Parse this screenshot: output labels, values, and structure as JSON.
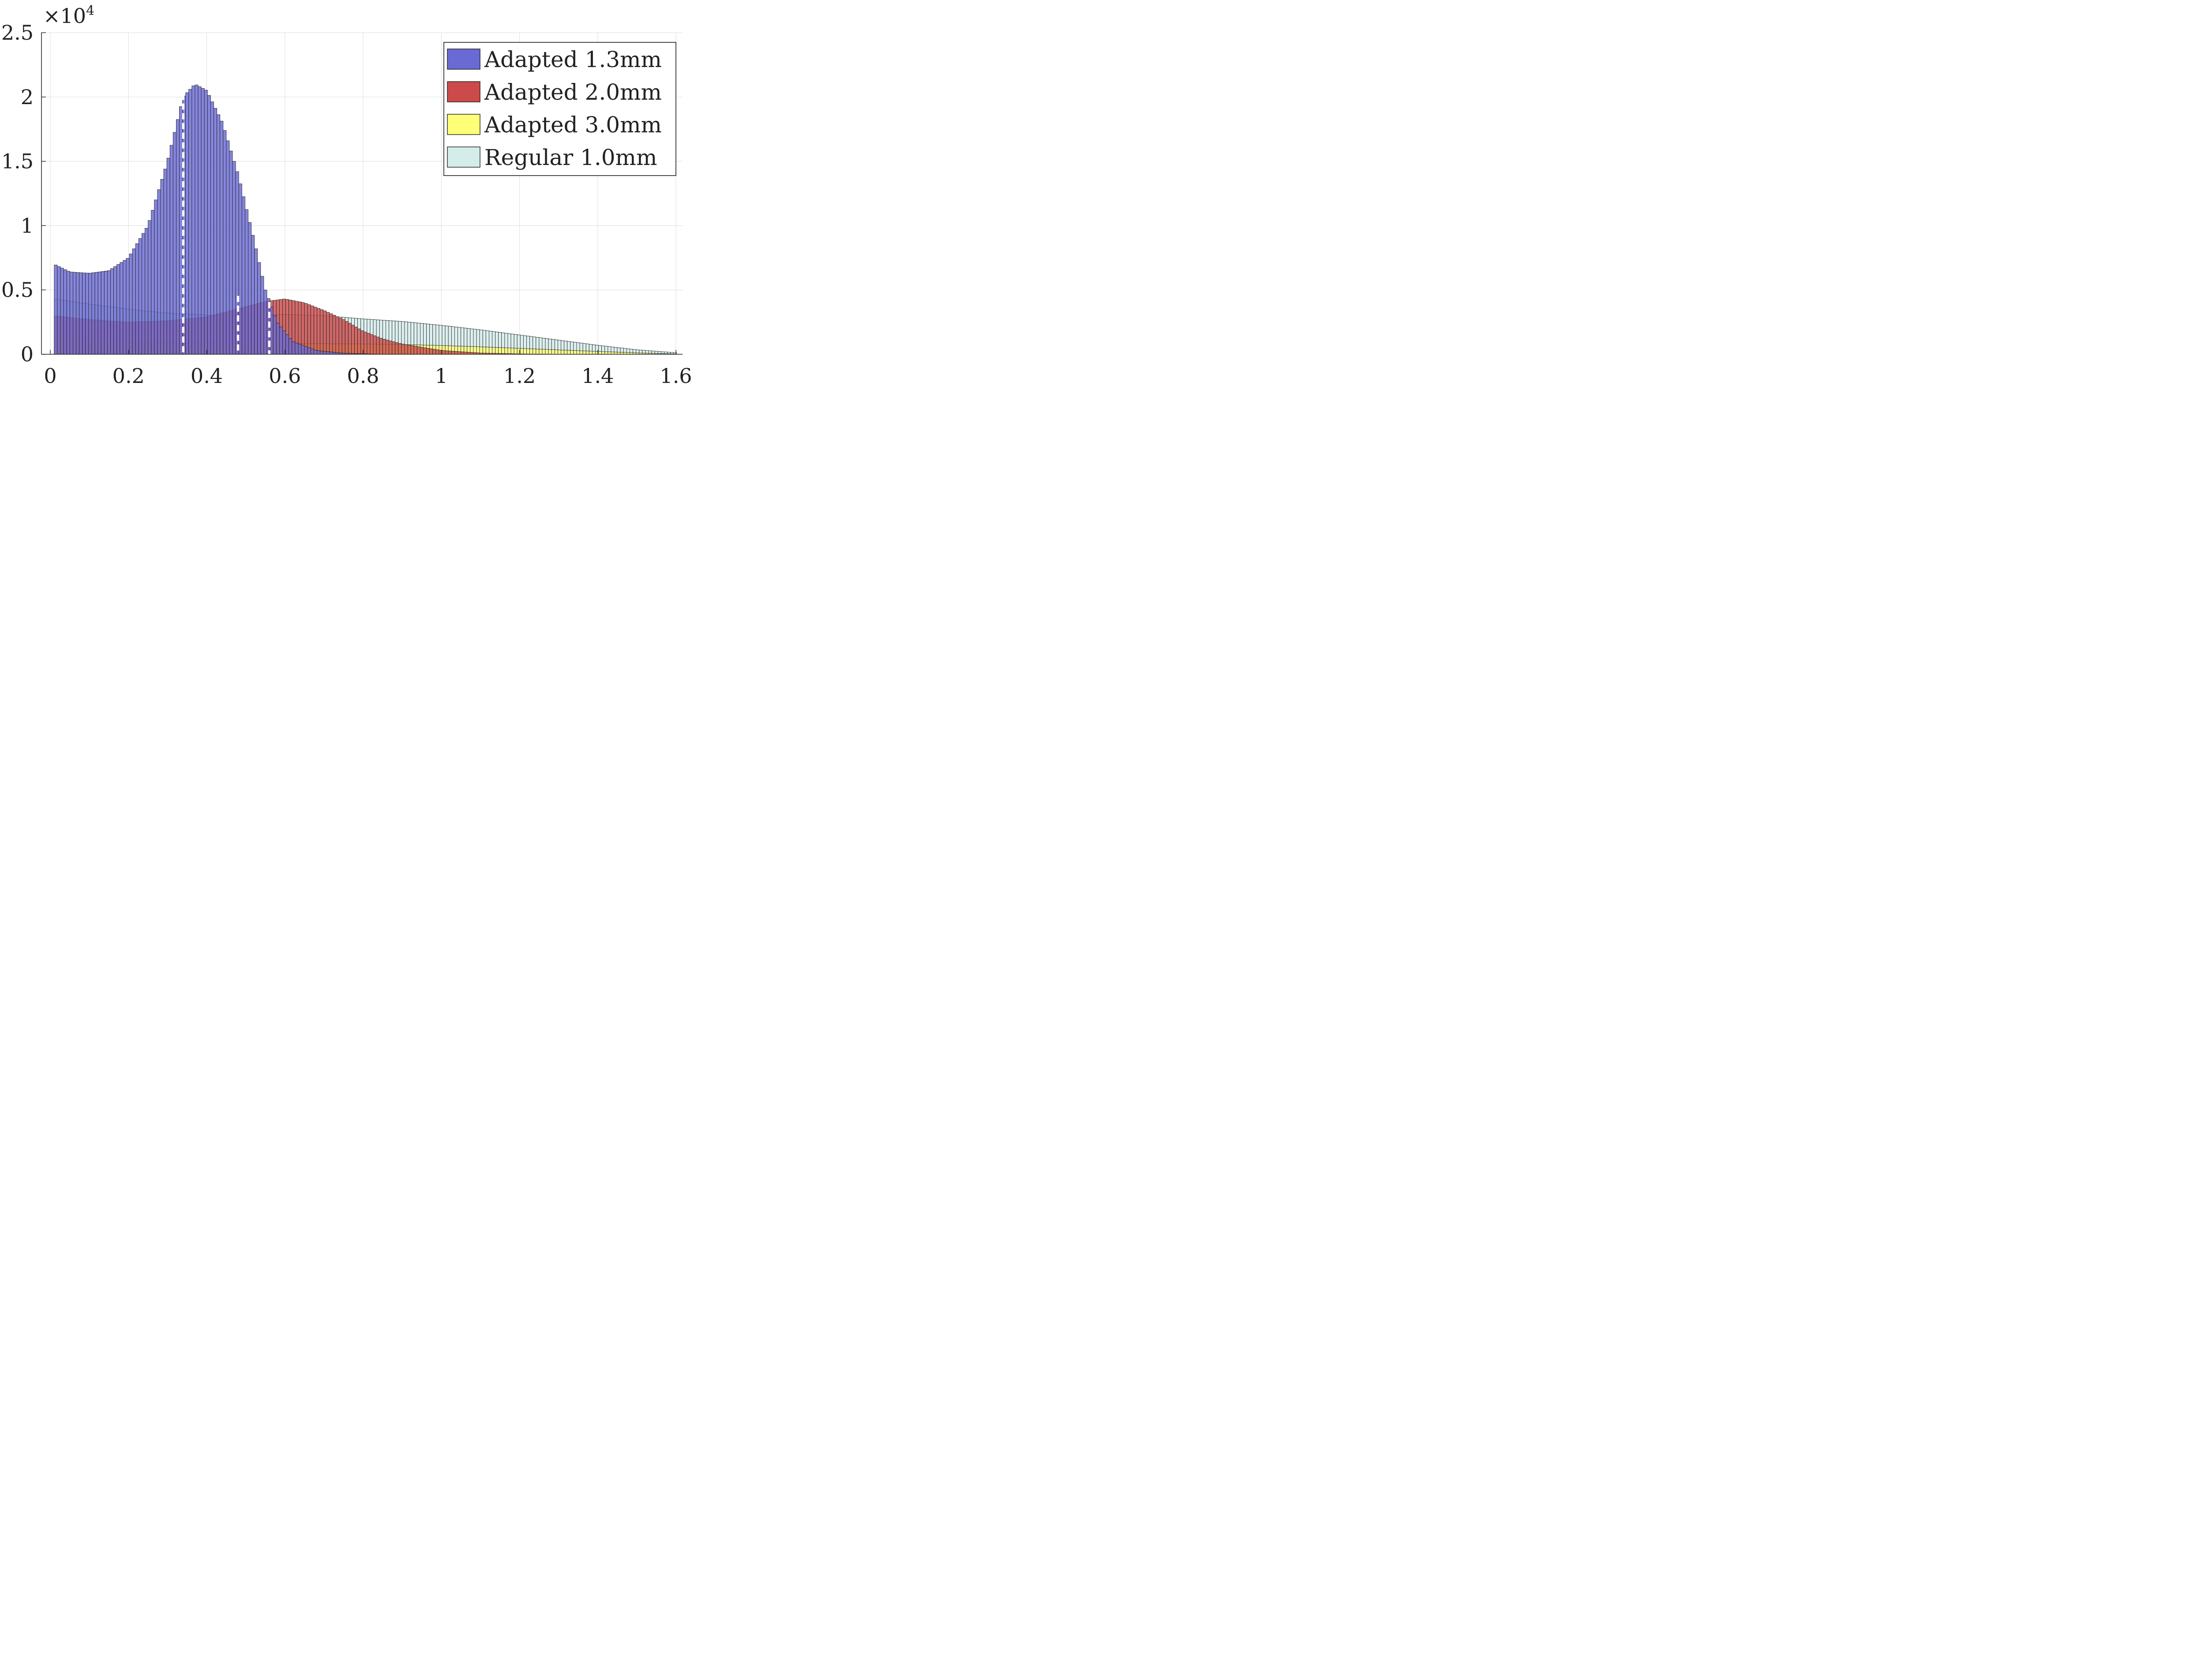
{
  "chart_data": {
    "type": "histogram",
    "title": "",
    "xlabel": "",
    "ylabel": "",
    "xlim": [
      0,
      1.6
    ],
    "ylim": [
      0,
      25000
    ],
    "x_ticks": [
      0,
      0.2,
      0.4,
      0.6,
      0.8,
      1,
      1.2,
      1.4,
      1.6
    ],
    "x_tick_labels": [
      "0",
      "0.2",
      "0.4",
      "0.6",
      "0.8",
      "1",
      "1.2",
      "1.4",
      "1.6"
    ],
    "y_ticks": [
      0,
      5000,
      10000,
      15000,
      20000,
      25000
    ],
    "y_tick_labels": [
      "0",
      "0.5",
      "1",
      "1.5",
      "2",
      "2.5"
    ],
    "y_exponent_label": "×10",
    "y_exponent_power": "4",
    "grid": true,
    "legend_position": "top-right",
    "series": [
      {
        "name": "Adapted 1.3mm",
        "color": "#6a6ad4",
        "median": 0.34,
        "points": [
          [
            0.01,
            7000
          ],
          [
            0.05,
            6400
          ],
          [
            0.1,
            6300
          ],
          [
            0.15,
            6500
          ],
          [
            0.2,
            7500
          ],
          [
            0.25,
            10000
          ],
          [
            0.3,
            15000
          ],
          [
            0.34,
            20000
          ],
          [
            0.37,
            21000
          ],
          [
            0.4,
            20500
          ],
          [
            0.44,
            18000
          ],
          [
            0.48,
            14000
          ],
          [
            0.52,
            9000
          ],
          [
            0.55,
            5000
          ],
          [
            0.58,
            2500
          ],
          [
            0.62,
            1000
          ],
          [
            0.68,
            300
          ],
          [
            0.75,
            80
          ],
          [
            0.85,
            0
          ]
        ]
      },
      {
        "name": "Adapted 2.0mm",
        "color": "#cc4a4a",
        "median": 0.48,
        "points": [
          [
            0.01,
            3000
          ],
          [
            0.1,
            2700
          ],
          [
            0.2,
            2500
          ],
          [
            0.3,
            2600
          ],
          [
            0.4,
            2900
          ],
          [
            0.45,
            3300
          ],
          [
            0.5,
            3700
          ],
          [
            0.55,
            4100
          ],
          [
            0.6,
            4300
          ],
          [
            0.65,
            4000
          ],
          [
            0.7,
            3400
          ],
          [
            0.75,
            2700
          ],
          [
            0.8,
            1800
          ],
          [
            0.85,
            1200
          ],
          [
            0.9,
            800
          ],
          [
            1.0,
            300
          ],
          [
            1.1,
            100
          ],
          [
            1.2,
            30
          ],
          [
            1.3,
            0
          ]
        ]
      },
      {
        "name": "Adapted 3.0mm",
        "color": "#ffff77",
        "median": 0.56,
        "points": [
          [
            0.01,
            1300
          ],
          [
            0.1,
            1100
          ],
          [
            0.2,
            950
          ],
          [
            0.3,
            850
          ],
          [
            0.4,
            820
          ],
          [
            0.5,
            800
          ],
          [
            0.6,
            820
          ],
          [
            0.7,
            820
          ],
          [
            0.8,
            800
          ],
          [
            0.9,
            760
          ],
          [
            1.0,
            680
          ],
          [
            1.1,
            580
          ],
          [
            1.2,
            460
          ],
          [
            1.3,
            340
          ],
          [
            1.4,
            220
          ],
          [
            1.5,
            110
          ],
          [
            1.6,
            20
          ]
        ]
      },
      {
        "name": "Regular 1.0mm",
        "color": "#d4ecea",
        "median": 0.56,
        "points": [
          [
            0.01,
            4300
          ],
          [
            0.1,
            3900
          ],
          [
            0.2,
            3500
          ],
          [
            0.3,
            3200
          ],
          [
            0.4,
            3050
          ],
          [
            0.5,
            3000
          ],
          [
            0.6,
            3100
          ],
          [
            0.7,
            3000
          ],
          [
            0.8,
            2750
          ],
          [
            0.9,
            2550
          ],
          [
            1.0,
            2250
          ],
          [
            1.1,
            1900
          ],
          [
            1.2,
            1500
          ],
          [
            1.3,
            1100
          ],
          [
            1.4,
            700
          ],
          [
            1.5,
            350
          ],
          [
            1.6,
            120
          ]
        ]
      }
    ]
  }
}
